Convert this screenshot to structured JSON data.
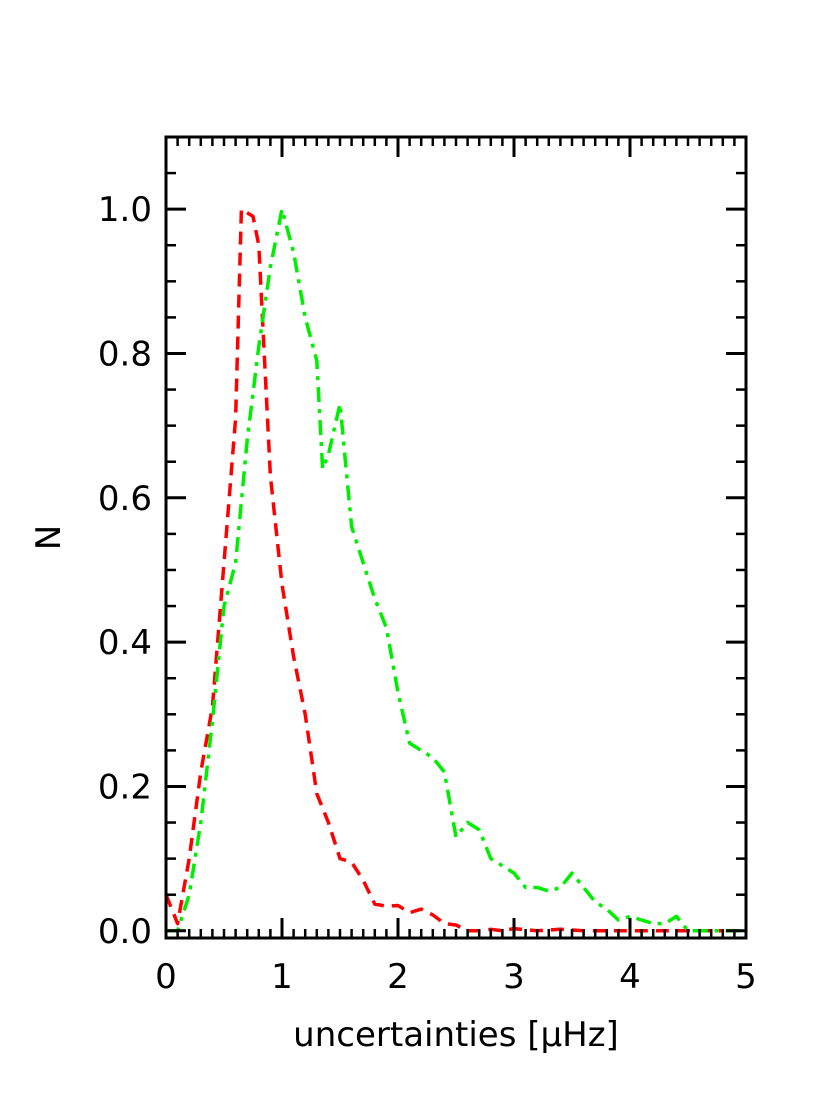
{
  "chart_data": {
    "type": "line",
    "title": "",
    "xlabel": "uncertainties [μHz]",
    "ylabel": "N",
    "xlim": [
      0,
      5
    ],
    "ylim": [
      -0.01,
      1.1
    ],
    "x_ticks": [
      {
        "value": 0,
        "label": "0"
      },
      {
        "value": 1,
        "label": "1"
      },
      {
        "value": 2,
        "label": "2"
      },
      {
        "value": 3,
        "label": "3"
      },
      {
        "value": 4,
        "label": "4"
      },
      {
        "value": 5,
        "label": "5"
      }
    ],
    "y_ticks": [
      {
        "value": 0.0,
        "label": "0.0"
      },
      {
        "value": 0.2,
        "label": "0.2"
      },
      {
        "value": 0.4,
        "label": "0.4"
      },
      {
        "value": 0.6,
        "label": "0.6"
      },
      {
        "value": 0.8,
        "label": "0.8"
      },
      {
        "value": 1.0,
        "label": "1.0"
      }
    ],
    "grid": false,
    "series": [
      {
        "color": "#ff0000",
        "dash": "dashed",
        "points": [
          [
            0.0,
            0.05
          ],
          [
            0.1,
            0.01
          ],
          [
            0.2,
            0.1
          ],
          [
            0.3,
            0.22
          ],
          [
            0.4,
            0.31
          ],
          [
            0.5,
            0.51
          ],
          [
            0.6,
            0.71
          ],
          [
            0.65,
            1.0
          ],
          [
            0.75,
            0.99
          ],
          [
            0.8,
            0.95
          ],
          [
            0.9,
            0.63
          ],
          [
            1.0,
            0.48
          ],
          [
            1.1,
            0.38
          ],
          [
            1.2,
            0.3
          ],
          [
            1.3,
            0.19
          ],
          [
            1.4,
            0.15
          ],
          [
            1.5,
            0.1
          ],
          [
            1.6,
            0.095
          ],
          [
            1.7,
            0.07
          ],
          [
            1.8,
            0.037
          ],
          [
            1.9,
            0.034
          ],
          [
            2.0,
            0.035
          ],
          [
            2.1,
            0.025
          ],
          [
            2.2,
            0.03
          ],
          [
            2.3,
            0.022
          ],
          [
            2.4,
            0.01
          ],
          [
            2.5,
            0.008
          ],
          [
            2.6,
            0.0
          ],
          [
            2.7,
            0.0
          ],
          [
            2.8,
            0.002
          ],
          [
            2.9,
            0.0
          ],
          [
            3.0,
            0.003
          ],
          [
            3.2,
            0.0
          ],
          [
            3.4,
            0.002
          ],
          [
            3.6,
            0.0
          ],
          [
            3.8,
            0.0
          ],
          [
            4.0,
            0.0
          ],
          [
            4.3,
            0.0
          ],
          [
            4.6,
            0.0
          ],
          [
            4.8,
            0.0
          ]
        ]
      },
      {
        "color": "#00ee00",
        "dash": "dashdot",
        "points": [
          [
            0.0,
            0.0
          ],
          [
            0.1,
            0.0
          ],
          [
            0.2,
            0.05
          ],
          [
            0.3,
            0.15
          ],
          [
            0.4,
            0.29
          ],
          [
            0.5,
            0.45
          ],
          [
            0.6,
            0.51
          ],
          [
            0.7,
            0.68
          ],
          [
            0.8,
            0.81
          ],
          [
            0.9,
            0.92
          ],
          [
            1.0,
            1.0
          ],
          [
            1.1,
            0.94
          ],
          [
            1.2,
            0.85
          ],
          [
            1.3,
            0.79
          ],
          [
            1.35,
            0.64
          ],
          [
            1.4,
            0.66
          ],
          [
            1.5,
            0.73
          ],
          [
            1.6,
            0.56
          ],
          [
            1.7,
            0.51
          ],
          [
            1.8,
            0.46
          ],
          [
            1.9,
            0.42
          ],
          [
            2.0,
            0.33
          ],
          [
            2.1,
            0.26
          ],
          [
            2.2,
            0.25
          ],
          [
            2.3,
            0.24
          ],
          [
            2.4,
            0.22
          ],
          [
            2.5,
            0.13
          ],
          [
            2.6,
            0.15
          ],
          [
            2.7,
            0.14
          ],
          [
            2.8,
            0.1
          ],
          [
            2.9,
            0.09
          ],
          [
            3.0,
            0.08
          ],
          [
            3.1,
            0.06
          ],
          [
            3.2,
            0.06
          ],
          [
            3.3,
            0.055
          ],
          [
            3.4,
            0.06
          ],
          [
            3.5,
            0.08
          ],
          [
            3.6,
            0.06
          ],
          [
            3.7,
            0.04
          ],
          [
            3.8,
            0.03
          ],
          [
            3.9,
            0.015
          ],
          [
            4.0,
            0.02
          ],
          [
            4.1,
            0.015
          ],
          [
            4.2,
            0.01
          ],
          [
            4.3,
            0.01
          ],
          [
            4.4,
            0.02
          ],
          [
            4.5,
            0.0
          ],
          [
            4.6,
            0.0
          ],
          [
            4.8,
            0.0
          ],
          [
            5.0,
            0.0
          ]
        ]
      }
    ]
  }
}
